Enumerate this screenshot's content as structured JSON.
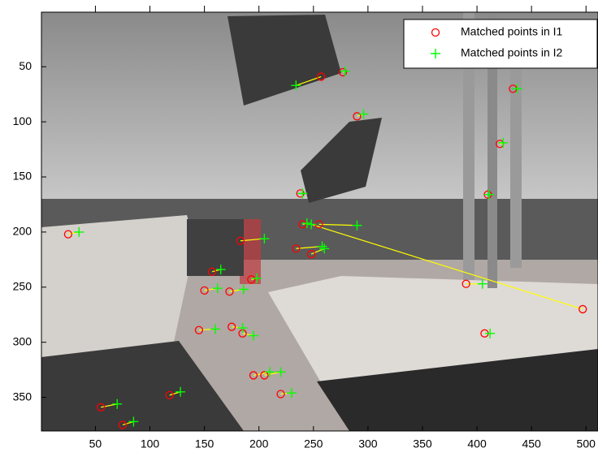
{
  "chart_data": {
    "type": "scatter",
    "xlim": [
      0.5,
      511
    ],
    "ylim": [
      0.5,
      380.5
    ],
    "y_reversed": true,
    "xticks": [
      50,
      100,
      150,
      200,
      250,
      300,
      350,
      400,
      450,
      500
    ],
    "yticks": [
      50,
      100,
      150,
      200,
      250,
      300,
      350
    ],
    "legend": "northeast",
    "match_line_color": "#ffff00",
    "series": [
      {
        "name": "Matched points in I1",
        "marker": "circle",
        "color": "#ff0000",
        "x": [
          257,
          277,
          290,
          433,
          421,
          410,
          238,
          240,
          497,
          255,
          234,
          248,
          183,
          193,
          157,
          150,
          173,
          390,
          145,
          175,
          185,
          195,
          205,
          220,
          118,
          55,
          75,
          25,
          407
        ],
        "values": [
          59,
          55,
          95,
          70,
          120,
          166,
          165,
          193,
          270,
          193,
          215,
          220,
          208,
          243,
          236,
          253,
          254,
          247,
          289,
          286,
          292,
          330,
          330,
          347,
          348,
          359,
          375,
          202,
          292
        ]
      },
      {
        "name": "Matched points in I2",
        "marker": "plus",
        "color": "#00ff00",
        "x": [
          234,
          279,
          296,
          437,
          424,
          411,
          240,
          244,
          248,
          290,
          258,
          260,
          205,
          198,
          165,
          162,
          186,
          405,
          160,
          185,
          195,
          210,
          220,
          230,
          128,
          70,
          85,
          35,
          412
        ],
        "values": [
          67,
          54,
          93,
          70,
          119,
          166,
          165,
          192,
          193,
          194,
          213,
          215,
          206,
          242,
          234,
          251,
          252,
          247,
          288,
          287,
          294,
          327,
          327,
          346,
          345,
          356,
          372,
          200,
          292
        ]
      }
    ]
  }
}
